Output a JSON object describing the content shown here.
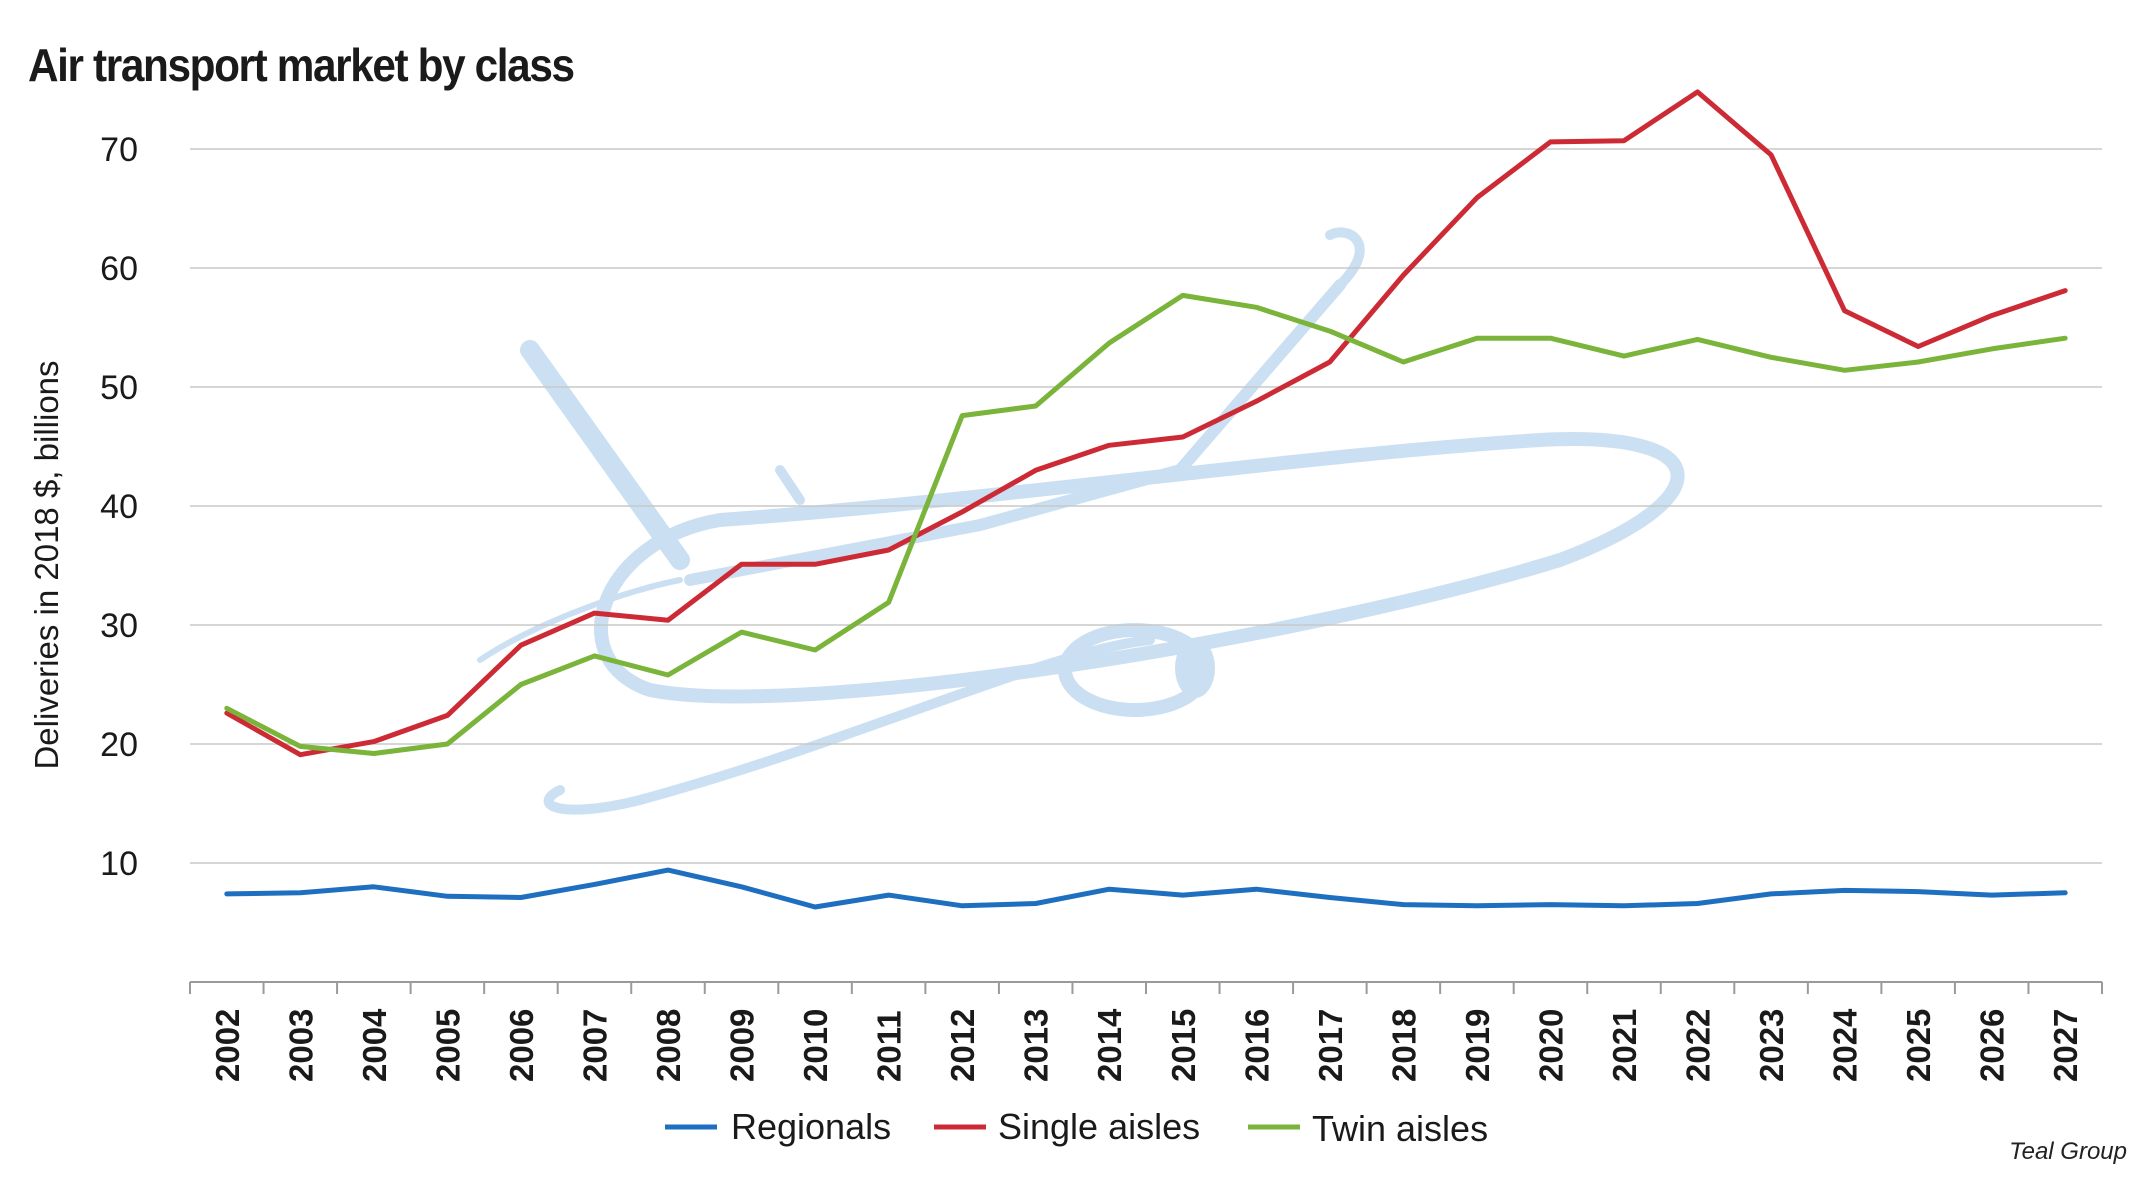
{
  "chart_data": {
    "type": "line",
    "title": "Air transport market by class",
    "ylabel": "Deliveries in 2018 $, billions",
    "xlabel": "",
    "ylim": [
      0,
      75
    ],
    "yticks": [
      10,
      20,
      30,
      40,
      50,
      60,
      70
    ],
    "grid": true,
    "legend_position": "bottom",
    "categories": [
      "2002",
      "2003",
      "2004",
      "2005",
      "2006",
      "2007",
      "2008",
      "2009",
      "2010",
      "2011",
      "2012",
      "2013",
      "2014",
      "2015",
      "2016",
      "2017",
      "2018",
      "2019",
      "2020",
      "2021",
      "2022",
      "2023",
      "2024",
      "2025",
      "2026",
      "2027"
    ],
    "series": [
      {
        "name": "Regionals",
        "color": "#1f6fc0",
        "values": [
          7.4,
          7.5,
          8.0,
          7.2,
          7.1,
          8.2,
          9.4,
          8.0,
          6.3,
          7.3,
          6.4,
          6.6,
          7.8,
          7.3,
          7.8,
          7.1,
          6.5,
          6.4,
          6.5,
          6.4,
          6.6,
          7.4,
          7.7,
          7.6,
          7.3,
          7.5
        ]
      },
      {
        "name": "Single aisles",
        "color": "#cc2b36",
        "values": [
          22.6,
          19.1,
          20.2,
          22.4,
          28.3,
          31.0,
          30.4,
          35.1,
          35.1,
          36.3,
          39.5,
          43.0,
          45.1,
          45.8,
          48.8,
          52.1,
          59.4,
          65.9,
          70.6,
          70.7,
          74.8,
          69.5,
          56.4,
          53.4,
          56.0,
          58.1
        ]
      },
      {
        "name": "Twin aisles",
        "color": "#7ab43a",
        "values": [
          23.0,
          19.8,
          19.2,
          20.0,
          25.0,
          27.4,
          25.8,
          29.4,
          27.9,
          31.9,
          47.6,
          48.4,
          53.7,
          57.7,
          56.7,
          54.7,
          52.1,
          54.1,
          54.1,
          52.6,
          54.0,
          52.5,
          51.4,
          52.1,
          53.2,
          54.1
        ]
      }
    ]
  },
  "source": "Teal Group",
  "watermark": "airplane-silhouette"
}
